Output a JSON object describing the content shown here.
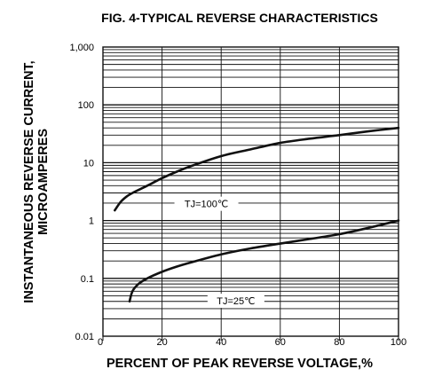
{
  "chart_data": {
    "type": "line",
    "title": "FIG. 4-TYPICAL REVERSE CHARACTERISTICS",
    "xlabel": "PERCENT OF PEAK REVERSE VOLTAGE,%",
    "ylabel_lines": [
      "INSTANTANEOUS REVERSE CURRENT,",
      "MICROAMPERES"
    ],
    "xlim": [
      0,
      100
    ],
    "ylim": [
      0.01,
      1000
    ],
    "yscale": "log",
    "xticks": [
      0,
      20,
      40,
      60,
      80,
      100
    ],
    "xtick_labels": [
      "0",
      "20",
      "40",
      "60",
      "80",
      "100"
    ],
    "yticks": [
      0.01,
      0.1,
      1,
      10,
      100,
      1000
    ],
    "ytick_labels": [
      "0.01",
      "0.1",
      "1",
      "10",
      "100",
      "1,000"
    ],
    "grid": "horizontal log minor lines",
    "series": [
      {
        "name": "TJ=100℃",
        "x": [
          4,
          6,
          8,
          10,
          15,
          20,
          25,
          30,
          40,
          50,
          60,
          70,
          80,
          90,
          100
        ],
        "values": [
          1.5,
          2.1,
          2.6,
          3.0,
          4.0,
          5.4,
          7.0,
          8.8,
          13,
          17,
          22,
          26,
          30,
          35,
          40
        ]
      },
      {
        "name": "TJ=25℃",
        "x": [
          9,
          10,
          12,
          15,
          20,
          25,
          30,
          40,
          50,
          60,
          70,
          80,
          90,
          100
        ],
        "values": [
          0.04,
          0.06,
          0.08,
          0.1,
          0.13,
          0.16,
          0.19,
          0.26,
          0.33,
          0.4,
          0.48,
          0.58,
          0.75,
          1.0
        ]
      }
    ]
  }
}
